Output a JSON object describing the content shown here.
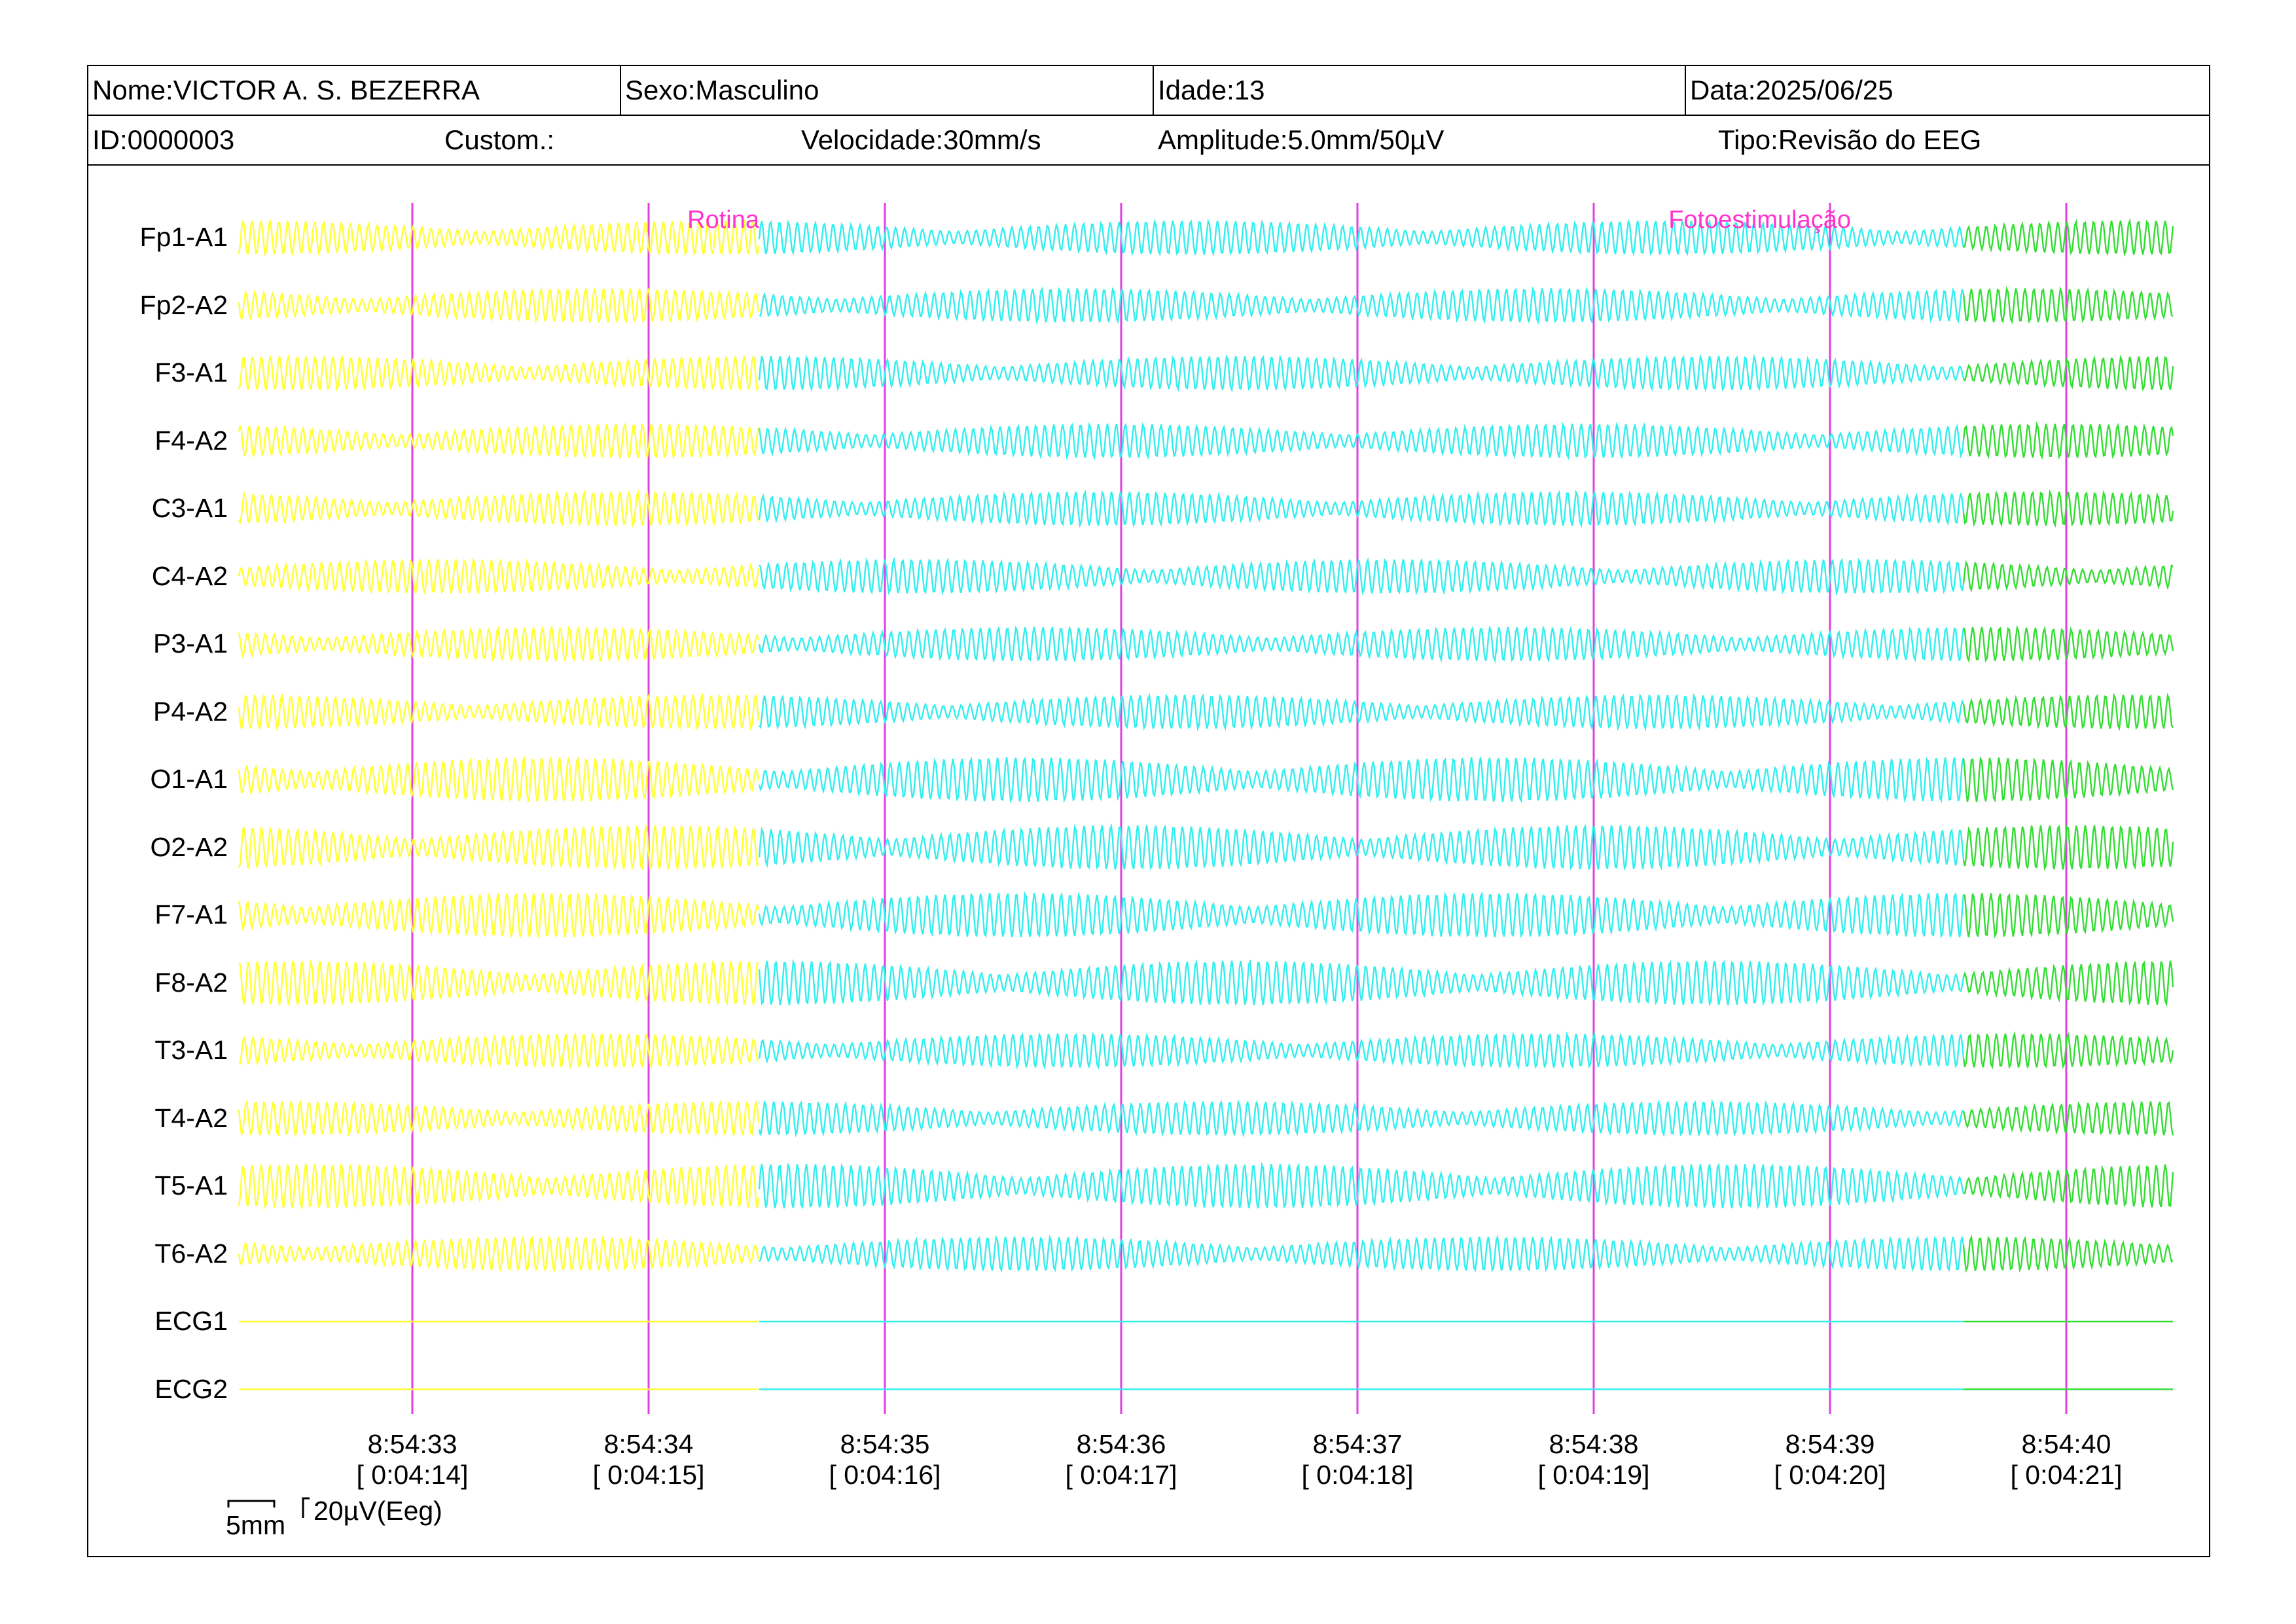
{
  "header": {
    "nome": "Nome:VICTOR A. S. BEZERRA",
    "sexo": "Sexo:Masculino",
    "idade": "Idade:13",
    "data": "Data:2025/06/25",
    "id": "ID:0000003",
    "custom": "Custom.:",
    "velocidade": "Velocidade:30mm/s",
    "amplitude": "Amplitude:5.0mm/50µV",
    "tipo": "Tipo:Revisão do EEG"
  },
  "colors": {
    "segment_1": "#ffff33",
    "segment_2": "#33eeee",
    "segment_3": "#33dd33",
    "marker": "#e040e0",
    "event_text": "#ff33cc"
  },
  "chart_data": {
    "type": "line",
    "channels": [
      "Fp1-A1",
      "Fp2-A2",
      "F3-A1",
      "F4-A2",
      "C3-A1",
      "C4-A2",
      "P3-A1",
      "P4-A2",
      "O1-A1",
      "O2-A2",
      "F7-A1",
      "F8-A2",
      "T3-A1",
      "T4-A2",
      "T5-A1",
      "T6-A2",
      "ECG1",
      "ECG2"
    ],
    "time_ticks": [
      {
        "clock": "8:54:33",
        "elapsed": "[ 0:04:14]"
      },
      {
        "clock": "8:54:34",
        "elapsed": "[ 0:04:15]"
      },
      {
        "clock": "8:54:35",
        "elapsed": "[ 0:04:16]"
      },
      {
        "clock": "8:54:36",
        "elapsed": "[ 0:04:17]"
      },
      {
        "clock": "8:54:37",
        "elapsed": "[ 0:04:18]"
      },
      {
        "clock": "8:54:38",
        "elapsed": "[ 0:04:19]"
      },
      {
        "clock": "8:54:39",
        "elapsed": "[ 0:04:20]"
      },
      {
        "clock": "8:54:40",
        "elapsed": "[ 0:04:21]"
      }
    ],
    "events": [
      {
        "label": "Rotina"
      },
      {
        "label": "Fotoestimulação"
      }
    ],
    "scale": {
      "time": "5mm",
      "amplitude": "20µV(Eeg)"
    }
  }
}
